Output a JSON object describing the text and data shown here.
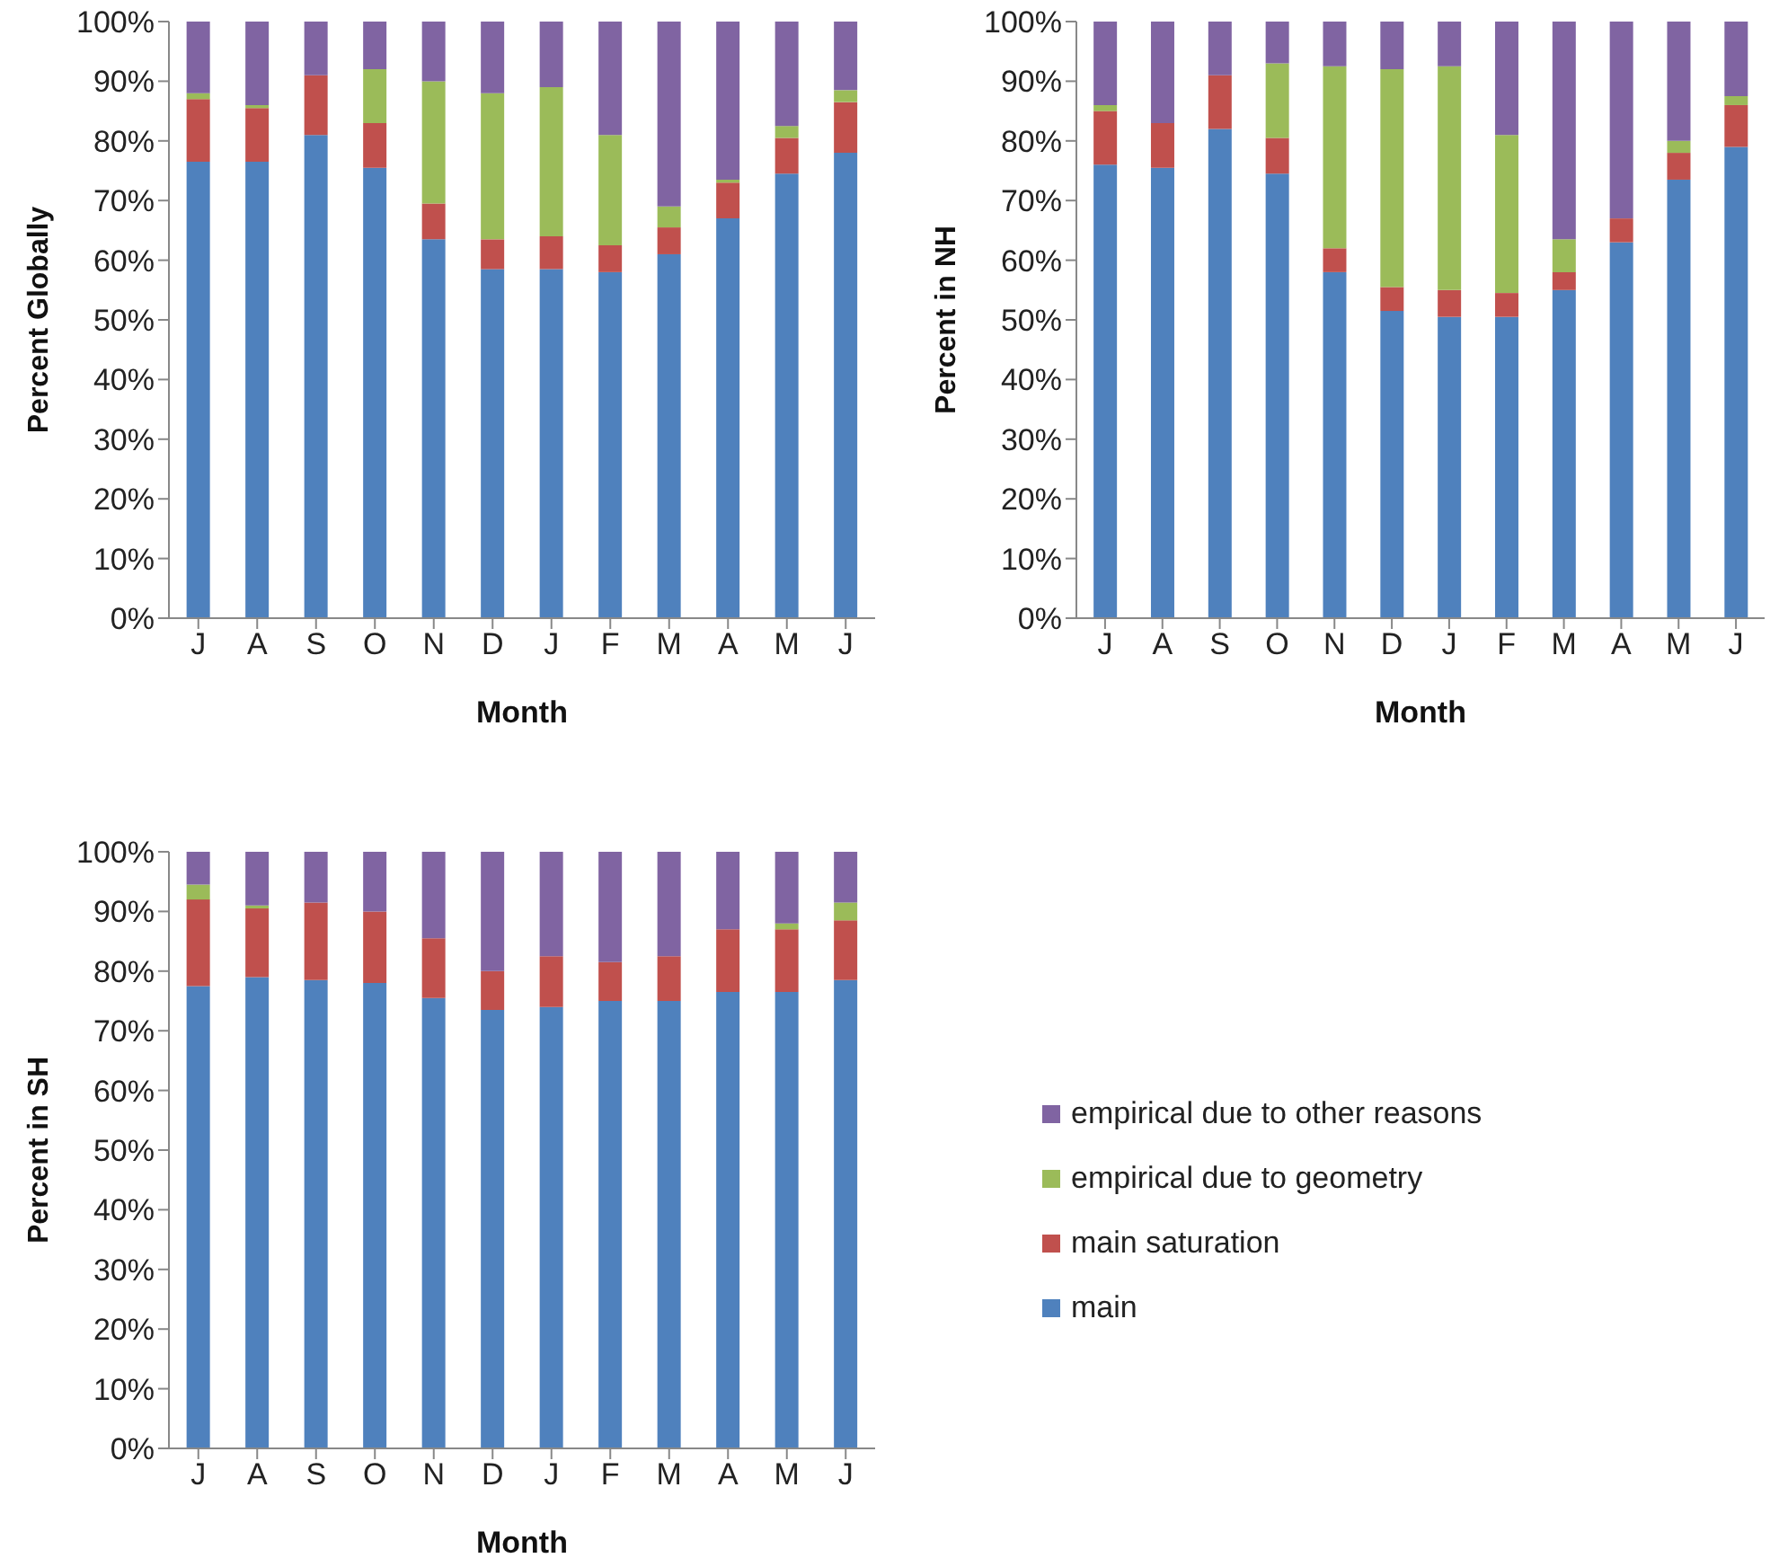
{
  "chart_data": [
    {
      "type": "bar",
      "stacked": true,
      "ylabel": "Percent Globally",
      "xlabel": "Month",
      "categories": [
        "J",
        "A",
        "S",
        "O",
        "N",
        "D",
        "J",
        "F",
        "M",
        "A",
        "M",
        "J"
      ],
      "ylim": [
        0,
        100
      ],
      "yticks": [
        {
          "value": 0,
          "label": "0%"
        },
        {
          "value": 10,
          "label": "10%"
        },
        {
          "value": 20,
          "label": "20%"
        },
        {
          "value": 30,
          "label": "30%"
        },
        {
          "value": 40,
          "label": "40%"
        },
        {
          "value": 50,
          "label": "50%"
        },
        {
          "value": 60,
          "label": "60%"
        },
        {
          "value": 70,
          "label": "70%"
        },
        {
          "value": 80,
          "label": "80%"
        },
        {
          "value": 90,
          "label": "90%"
        },
        {
          "value": 100,
          "label": "100%"
        }
      ],
      "series": [
        {
          "color": "#4f81bd",
          "values": [
            76.5,
            76.5,
            81,
            75.5,
            63.5,
            58.5,
            58.5,
            58,
            61,
            67,
            74.5,
            78
          ]
        },
        {
          "color": "#c0504d",
          "values": [
            10.5,
            9,
            10,
            7.5,
            6,
            5,
            5.5,
            4.5,
            4.5,
            6,
            6,
            8.5
          ]
        },
        {
          "color": "#9bbb59",
          "values": [
            1,
            0.5,
            0,
            9,
            20.5,
            24.5,
            25,
            18.5,
            3.5,
            0.5,
            2,
            2
          ]
        },
        {
          "color": "#8064a2",
          "values": [
            12,
            14,
            9,
            8,
            10,
            12,
            11,
            19,
            31,
            26.5,
            17.5,
            11.5
          ]
        }
      ]
    },
    {
      "type": "bar",
      "stacked": true,
      "ylabel": "Percent in NH",
      "xlabel": "Month",
      "categories": [
        "J",
        "A",
        "S",
        "O",
        "N",
        "D",
        "J",
        "F",
        "M",
        "A",
        "M",
        "J"
      ],
      "ylim": [
        0,
        100
      ],
      "yticks": [
        {
          "value": 0,
          "label": "0%"
        },
        {
          "value": 10,
          "label": "10%"
        },
        {
          "value": 20,
          "label": "20%"
        },
        {
          "value": 30,
          "label": "30%"
        },
        {
          "value": 40,
          "label": "40%"
        },
        {
          "value": 50,
          "label": "50%"
        },
        {
          "value": 60,
          "label": "60%"
        },
        {
          "value": 70,
          "label": "70%"
        },
        {
          "value": 80,
          "label": "80%"
        },
        {
          "value": 90,
          "label": "90%"
        },
        {
          "value": 100,
          "label": "100%"
        }
      ],
      "series": [
        {
          "color": "#4f81bd",
          "values": [
            76,
            75.5,
            82,
            74.5,
            58,
            51.5,
            50.5,
            50.5,
            55,
            63,
            73.5,
            79
          ]
        },
        {
          "color": "#c0504d",
          "values": [
            9,
            7.5,
            9,
            6,
            4,
            4,
            4.5,
            4,
            3,
            4,
            4.5,
            7
          ]
        },
        {
          "color": "#9bbb59",
          "values": [
            1,
            0,
            0,
            12.5,
            30.5,
            36.5,
            37.5,
            26.5,
            5.5,
            0,
            2,
            1.5
          ]
        },
        {
          "color": "#8064a2",
          "values": [
            14,
            17,
            9,
            7,
            7.5,
            8,
            7.5,
            19,
            36.5,
            33,
            20,
            12.5
          ]
        }
      ]
    },
    {
      "type": "bar",
      "stacked": true,
      "ylabel": "Percent in SH",
      "xlabel": "Month",
      "categories": [
        "J",
        "A",
        "S",
        "O",
        "N",
        "D",
        "J",
        "F",
        "M",
        "A",
        "M",
        "J"
      ],
      "ylim": [
        0,
        100
      ],
      "yticks": [
        {
          "value": 0,
          "label": "0%"
        },
        {
          "value": 10,
          "label": "10%"
        },
        {
          "value": 20,
          "label": "20%"
        },
        {
          "value": 30,
          "label": "30%"
        },
        {
          "value": 40,
          "label": "40%"
        },
        {
          "value": 50,
          "label": "50%"
        },
        {
          "value": 60,
          "label": "60%"
        },
        {
          "value": 70,
          "label": "70%"
        },
        {
          "value": 80,
          "label": "80%"
        },
        {
          "value": 90,
          "label": "90%"
        },
        {
          "value": 100,
          "label": "100%"
        }
      ],
      "legend": "right",
      "series": [
        {
          "name": "main",
          "color": "#4f81bd",
          "values": [
            77.5,
            79,
            78.5,
            78,
            75.5,
            73.5,
            74,
            75,
            75,
            76.5,
            76.5,
            78.5
          ]
        },
        {
          "name": "main saturation",
          "color": "#c0504d",
          "values": [
            14.5,
            11.5,
            13,
            12,
            10,
            6.5,
            8.5,
            6.5,
            7.5,
            10.5,
            10.5,
            10
          ]
        },
        {
          "name": "empirical due to geometry",
          "color": "#9bbb59",
          "values": [
            2.5,
            0.5,
            0,
            0,
            0,
            0,
            0,
            0,
            0,
            0,
            1,
            3
          ]
        },
        {
          "name": "empirical due to other reasons",
          "color": "#8064a2",
          "values": [
            5.5,
            9,
            8.5,
            10,
            14.5,
            20,
            17.5,
            18.5,
            17.5,
            13,
            12,
            8.5
          ]
        }
      ]
    }
  ]
}
